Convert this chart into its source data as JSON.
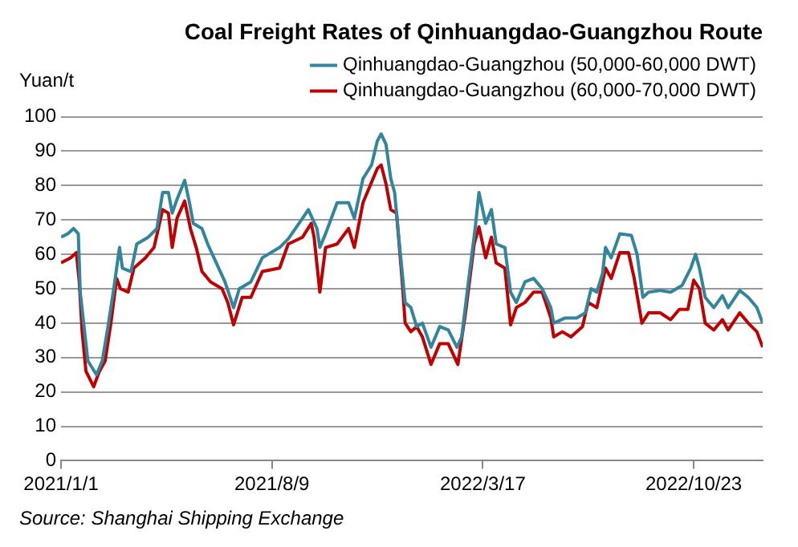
{
  "chart_data": {
    "type": "line",
    "title": "Coal Freight Rates of Qinhuangdao-Guangzhou Route",
    "ylabel": "Yuan/t",
    "annotations": [
      "Source: Shanghai Shipping Exchange"
    ],
    "xlim": [
      "2021-01-01",
      "2023-01-03"
    ],
    "xticks": [
      {
        "value": "2021-01-01",
        "label": "2021/1/1"
      },
      {
        "value": "2021-08-09",
        "label": "2021/8/9"
      },
      {
        "value": "2022-03-17",
        "label": "2022/3/17"
      },
      {
        "value": "2022-10-23",
        "label": "2022/10/23"
      }
    ],
    "ylim": [
      0,
      100
    ],
    "yticks": [
      0,
      10,
      20,
      30,
      40,
      50,
      60,
      70,
      80,
      90,
      100
    ],
    "grid": "y",
    "legend": "top",
    "marker": "none",
    "line_style": "solid",
    "series": [
      {
        "name": "Qinhuangdao-Guangzhou (50,000-60,000 DWT)",
        "color": "#31859c",
        "x": [
          "2021-01-01",
          "2021-01-08",
          "2021-01-14",
          "2021-01-19",
          "2021-01-21",
          "2021-01-25",
          "2021-01-29",
          "2021-02-07",
          "2021-02-13",
          "2021-02-19",
          "2021-02-25",
          "2021-03-03",
          "2021-03-06",
          "2021-03-15",
          "2021-03-21",
          "2021-04-02",
          "2021-04-11",
          "2021-04-17",
          "2021-04-23",
          "2021-04-27",
          "2021-05-02",
          "2021-05-10",
          "2021-05-15",
          "2021-05-19",
          "2021-05-28",
          "2021-06-03",
          "2021-06-12",
          "2021-06-21",
          "2021-06-30",
          "2021-07-06",
          "2021-07-18",
          "2021-07-30",
          "2021-08-17",
          "2021-08-26",
          "2021-09-10",
          "2021-09-16",
          "2021-09-25",
          "2021-09-28",
          "2021-10-04",
          "2021-10-16",
          "2021-10-28",
          "2021-11-03",
          "2021-11-12",
          "2021-11-21",
          "2021-11-27",
          "2021-12-01",
          "2021-12-06",
          "2021-12-11",
          "2021-12-15",
          "2021-12-20",
          "2021-12-26",
          "2022-01-01",
          "2022-01-07",
          "2022-01-13",
          "2022-01-22",
          "2022-01-31",
          "2022-02-09",
          "2022-02-18",
          "2022-02-23",
          "2022-03-02",
          "2022-03-09",
          "2022-03-13",
          "2022-03-20",
          "2022-03-26",
          "2022-03-31",
          "2022-04-09",
          "2022-04-15",
          "2022-04-21",
          "2022-04-30",
          "2022-05-09",
          "2022-05-18",
          "2022-05-27",
          "2022-05-30",
          "2022-06-11",
          "2022-06-23",
          "2022-07-02",
          "2022-07-08",
          "2022-07-14",
          "2022-07-20",
          "2022-07-23",
          "2022-07-29",
          "2022-08-07",
          "2022-08-19",
          "2022-08-25",
          "2022-08-31",
          "2022-09-06",
          "2022-09-18",
          "2022-09-29",
          "2022-10-11",
          "2022-10-20",
          "2022-10-25",
          "2022-10-29",
          "2022-11-04",
          "2022-11-13",
          "2022-11-22",
          "2022-11-28",
          "2022-12-10",
          "2022-12-19",
          "2022-12-28",
          "2023-01-03"
        ],
        "values": [
          65,
          66,
          67.5,
          66,
          49,
          39,
          29,
          25,
          29,
          39,
          50,
          62,
          56,
          55,
          63,
          65,
          67.5,
          78,
          78,
          72,
          76,
          81.5,
          75,
          69,
          67.5,
          63,
          57.5,
          52,
          44.5,
          50,
          52,
          59,
          62,
          64.5,
          70.5,
          73,
          67.5,
          62,
          66,
          75,
          75,
          70.5,
          82,
          86,
          93,
          95,
          92,
          82,
          78,
          63,
          46,
          44.5,
          39,
          40,
          33,
          39,
          38,
          33,
          36,
          52,
          67.5,
          78,
          69,
          73,
          63,
          62,
          49,
          46,
          52,
          53,
          50,
          44.5,
          40,
          41.5,
          41.5,
          43,
          50,
          49,
          54.5,
          62,
          59,
          66,
          65.5,
          60,
          47.5,
          49,
          49.5,
          49,
          51,
          56,
          60,
          56,
          47.5,
          44.5,
          48,
          44.5,
          49.5,
          47.5,
          44.5,
          40
        ]
      },
      {
        "name": "Qinhuangdao-Guangzhou (60,000-70,000 DWT)",
        "color": "#c00000",
        "x": [
          "2021-01-01",
          "2021-01-11",
          "2021-01-17",
          "2021-01-20",
          "2021-01-23",
          "2021-01-27",
          "2021-02-04",
          "2021-02-10",
          "2021-02-16",
          "2021-02-22",
          "2021-02-28",
          "2021-03-04",
          "2021-03-12",
          "2021-03-18",
          "2021-03-30",
          "2021-04-08",
          "2021-04-17",
          "2021-04-23",
          "2021-04-27",
          "2021-05-02",
          "2021-05-10",
          "2021-05-16",
          "2021-05-22",
          "2021-05-28",
          "2021-06-06",
          "2021-06-18",
          "2021-06-24",
          "2021-06-30",
          "2021-07-09",
          "2021-07-18",
          "2021-07-30",
          "2021-08-17",
          "2021-08-26",
          "2021-09-10",
          "2021-09-19",
          "2021-09-22",
          "2021-09-28",
          "2021-10-04",
          "2021-10-16",
          "2021-10-28",
          "2021-11-03",
          "2021-11-12",
          "2021-11-27",
          "2021-12-01",
          "2021-12-06",
          "2021-12-11",
          "2021-12-17",
          "2021-12-23",
          "2021-12-26",
          "2022-01-01",
          "2022-01-07",
          "2022-01-13",
          "2022-01-22",
          "2022-01-31",
          "2022-02-09",
          "2022-02-19",
          "2022-02-27",
          "2022-03-08",
          "2022-03-13",
          "2022-03-20",
          "2022-03-26",
          "2022-03-31",
          "2022-04-09",
          "2022-04-15",
          "2022-04-21",
          "2022-04-30",
          "2022-05-09",
          "2022-05-18",
          "2022-05-27",
          "2022-05-30",
          "2022-06-08",
          "2022-06-17",
          "2022-06-29",
          "2022-07-05",
          "2022-07-14",
          "2022-07-20",
          "2022-07-23",
          "2022-07-29",
          "2022-08-07",
          "2022-08-16",
          "2022-08-22",
          "2022-08-30",
          "2022-09-06",
          "2022-09-18",
          "2022-09-29",
          "2022-10-08",
          "2022-10-17",
          "2022-10-23",
          "2022-10-29",
          "2022-11-04",
          "2022-11-13",
          "2022-11-22",
          "2022-11-28",
          "2022-12-10",
          "2022-12-19",
          "2022-12-28",
          "2023-01-03"
        ],
        "values": [
          57.5,
          59,
          60.5,
          52,
          37.5,
          26,
          21.5,
          26,
          29,
          40,
          53,
          50,
          49,
          56,
          59,
          62,
          73,
          72,
          62,
          70.5,
          75.5,
          67.5,
          62,
          55,
          52,
          50,
          46,
          39.5,
          47.5,
          47.5,
          55,
          56,
          63,
          65,
          69,
          65,
          49,
          62,
          63,
          67.5,
          62,
          75,
          85,
          86,
          80.5,
          73,
          72,
          52,
          40,
          37.5,
          39,
          36,
          28,
          34,
          34,
          28,
          43,
          63,
          68,
          59,
          65,
          57.5,
          56,
          39.5,
          44.5,
          46,
          49,
          49,
          41.5,
          36,
          37.5,
          36,
          39,
          46,
          44.5,
          52,
          56,
          53,
          60.5,
          60.5,
          53,
          40,
          43,
          43,
          41,
          44,
          44,
          52.5,
          50,
          40,
          38,
          41,
          38,
          43,
          40,
          37.5,
          33
        ]
      }
    ]
  }
}
